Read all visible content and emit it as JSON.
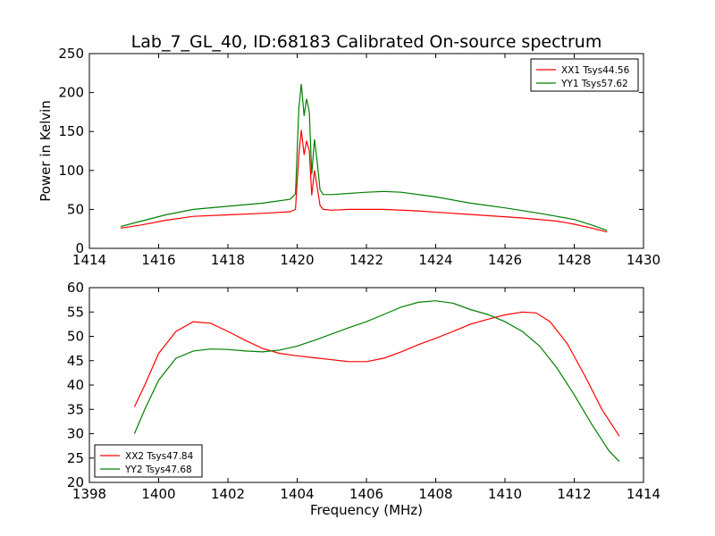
{
  "figure": {
    "title": "Lab_7_GL_40, ID:68183 Calibrated On-source spectrum"
  },
  "chart_data": [
    {
      "type": "line",
      "panel": "top",
      "title": "Lab_7_GL_40, ID:68183 Calibrated On-source spectrum",
      "xlabel": "",
      "ylabel": "Power in Kelvin",
      "xlim": [
        1414,
        1430
      ],
      "ylim": [
        0,
        250
      ],
      "xticks": [
        1414,
        1416,
        1418,
        1420,
        1422,
        1424,
        1426,
        1428,
        1430
      ],
      "yticks": [
        0,
        50,
        100,
        150,
        200,
        250
      ],
      "grid": false,
      "legend_position": "top-right",
      "series": [
        {
          "name": "XX1 Tsys44.56",
          "color": "#ff0000",
          "x": [
            1414.9,
            1415.5,
            1416.2,
            1417.0,
            1418.0,
            1419.0,
            1419.8,
            1419.95,
            1420.05,
            1420.12,
            1420.2,
            1420.27,
            1420.35,
            1420.42,
            1420.5,
            1420.58,
            1420.66,
            1420.75,
            1421.0,
            1421.5,
            1422.5,
            1423.5,
            1424.5,
            1425.5,
            1426.5,
            1427.5,
            1428.0,
            1428.5,
            1428.95
          ],
          "y": [
            26,
            30,
            36,
            41,
            43,
            45,
            47,
            50,
            120,
            152,
            120,
            138,
            125,
            68,
            100,
            78,
            55,
            50,
            49,
            50,
            50,
            48,
            45,
            42,
            39,
            35,
            31,
            26,
            21
          ]
        },
        {
          "name": "YY1 Tsys57.62",
          "color": "#008000",
          "x": [
            1414.9,
            1415.5,
            1416.2,
            1417.0,
            1418.0,
            1419.0,
            1419.8,
            1419.95,
            1420.05,
            1420.12,
            1420.2,
            1420.27,
            1420.35,
            1420.42,
            1420.5,
            1420.58,
            1420.66,
            1420.75,
            1421.0,
            1422.0,
            1422.5,
            1423.0,
            1424.0,
            1425.0,
            1426.0,
            1427.0,
            1428.0,
            1428.5,
            1428.95
          ],
          "y": [
            28,
            35,
            43,
            50,
            54,
            58,
            63,
            70,
            180,
            211,
            170,
            192,
            175,
            95,
            140,
            110,
            75,
            69,
            69,
            72,
            73,
            72,
            66,
            58,
            52,
            45,
            37,
            30,
            23
          ]
        }
      ]
    },
    {
      "type": "line",
      "panel": "bottom",
      "title": "",
      "xlabel": "Frequency (MHz)",
      "ylabel": "",
      "xlim": [
        1398,
        1414
      ],
      "ylim": [
        20,
        60
      ],
      "xticks": [
        1398,
        1400,
        1402,
        1404,
        1406,
        1408,
        1410,
        1412,
        1414
      ],
      "yticks": [
        20,
        25,
        30,
        35,
        40,
        45,
        50,
        55,
        60
      ],
      "grid": false,
      "legend_position": "bottom-left",
      "series": [
        {
          "name": "XX2 Tsys47.84",
          "color": "#ff0000",
          "x": [
            1399.3,
            1399.6,
            1400.0,
            1400.5,
            1401.0,
            1401.5,
            1402.0,
            1402.5,
            1403.0,
            1403.5,
            1404.0,
            1404.5,
            1405.0,
            1405.5,
            1406.0,
            1406.5,
            1407.0,
            1407.5,
            1408.0,
            1408.5,
            1409.0,
            1409.5,
            1410.0,
            1410.5,
            1410.9,
            1411.3,
            1411.8,
            1412.3,
            1412.8,
            1413.3
          ],
          "y": [
            35.5,
            40,
            46.5,
            51,
            53,
            52.7,
            51,
            49.2,
            47.5,
            46.5,
            46,
            45.6,
            45.2,
            44.8,
            44.8,
            45.5,
            46.8,
            48.3,
            49.6,
            51,
            52.5,
            53.5,
            54.4,
            55,
            54.8,
            53,
            48.5,
            42,
            35,
            29.5
          ]
        },
        {
          "name": "YY2 Tsys47.68",
          "color": "#008000",
          "x": [
            1399.3,
            1399.6,
            1400.0,
            1400.5,
            1401.0,
            1401.5,
            1402.0,
            1402.5,
            1403.0,
            1403.5,
            1404.0,
            1404.5,
            1405.0,
            1405.5,
            1406.0,
            1406.5,
            1407.0,
            1407.5,
            1408.0,
            1408.5,
            1409.0,
            1409.5,
            1410.0,
            1410.5,
            1411.0,
            1411.5,
            1412.0,
            1412.5,
            1413.0,
            1413.3
          ],
          "y": [
            30,
            35,
            41,
            45.5,
            47,
            47.4,
            47.3,
            47,
            46.8,
            47.2,
            48,
            49.2,
            50.5,
            51.8,
            53,
            54.5,
            56,
            57,
            57.3,
            56.8,
            55.5,
            54.5,
            53,
            51,
            48,
            43.5,
            38,
            32,
            26.5,
            24.3
          ]
        }
      ]
    }
  ]
}
